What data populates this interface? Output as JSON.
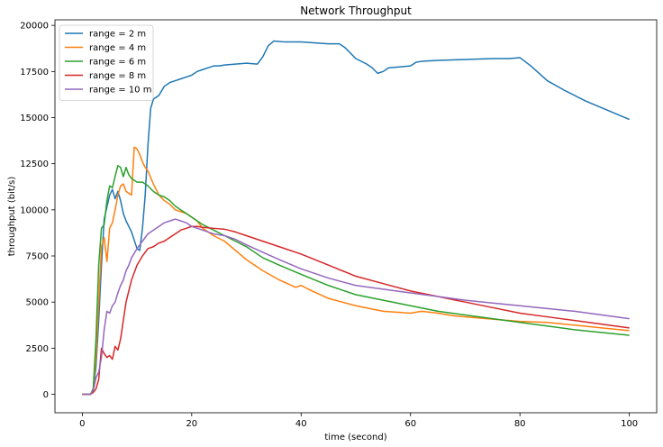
{
  "chart_data": {
    "type": "line",
    "title": "Network Throughput",
    "xlabel": "time (second)",
    "ylabel": "throughput (bit/s)",
    "xlim": [
      -5,
      105
    ],
    "ylim": [
      -1000,
      20300
    ],
    "xticks": [
      0,
      20,
      40,
      60,
      80,
      100
    ],
    "yticks": [
      0,
      2500,
      5000,
      7500,
      10000,
      12500,
      15000,
      17500,
      20000
    ],
    "grid": false,
    "legend_position": "top-left",
    "series": [
      {
        "name": "range = 2 m",
        "color": "#1f77b4",
        "x": [
          0,
          1.5,
          2,
          2.5,
          3,
          3.5,
          4,
          5,
          5.5,
          6,
          6.5,
          7,
          7.5,
          8,
          9,
          10,
          10.5,
          11,
          11.5,
          12,
          12.5,
          13,
          14,
          15,
          16,
          17,
          18,
          19,
          20,
          21,
          22,
          23,
          24,
          25,
          26,
          28,
          30,
          32,
          33,
          34,
          35,
          37,
          40,
          45,
          47,
          48,
          50,
          52,
          53,
          54,
          55,
          56,
          58,
          60,
          61,
          62,
          65,
          70,
          75,
          78,
          80,
          82,
          85,
          88,
          92,
          96,
          100
        ],
        "y": [
          0,
          0,
          200,
          1500,
          4000,
          7000,
          9500,
          10800,
          11100,
          10600,
          11000,
          10500,
          9800,
          9400,
          8800,
          7900,
          7800,
          9000,
          10800,
          13500,
          15500,
          16000,
          16200,
          16700,
          16900,
          17000,
          17100,
          17200,
          17300,
          17500,
          17600,
          17700,
          17800,
          17800,
          17850,
          17900,
          17950,
          17900,
          18300,
          18900,
          19150,
          19100,
          19100,
          19000,
          19000,
          18800,
          18200,
          17900,
          17700,
          17400,
          17500,
          17700,
          17750,
          17800,
          18000,
          18050,
          18100,
          18150,
          18200,
          18200,
          18250,
          17800,
          17000,
          16500,
          15900,
          15400,
          14900
        ]
      },
      {
        "name": "range = 4 m",
        "color": "#ff7f0e",
        "x": [
          0,
          1.5,
          2,
          2.5,
          3,
          3.5,
          4,
          4.5,
          5,
          5.5,
          6,
          6.5,
          7,
          7.5,
          8,
          9,
          9.5,
          10,
          10.5,
          11,
          11.5,
          12,
          13,
          14,
          15,
          16,
          17,
          18,
          19,
          20,
          21,
          22,
          24,
          26,
          28,
          30,
          33,
          36,
          39,
          40,
          42,
          45,
          50,
          55,
          60,
          62,
          65,
          68,
          72,
          76,
          80,
          85,
          90,
          95,
          100
        ],
        "y": [
          0,
          0,
          300,
          2000,
          5000,
          8000,
          8500,
          7200,
          9000,
          9300,
          10000,
          10800,
          11300,
          11400,
          11000,
          10800,
          13400,
          13300,
          13000,
          12600,
          12300,
          12100,
          11400,
          10800,
          10500,
          10300,
          10000,
          9900,
          9800,
          9600,
          9400,
          9000,
          8600,
          8300,
          7800,
          7300,
          6700,
          6200,
          5800,
          5900,
          5600,
          5200,
          4800,
          4500,
          4400,
          4500,
          4400,
          4250,
          4150,
          4050,
          3950,
          3900,
          3750,
          3600,
          3450
        ]
      },
      {
        "name": "range = 6 m",
        "color": "#2ca02c",
        "x": [
          0,
          1.5,
          2,
          2.5,
          3,
          3.5,
          4,
          4.5,
          5,
          5.5,
          6,
          6.5,
          7,
          7.5,
          8,
          8.5,
          9,
          10,
          11,
          12,
          13,
          14,
          15,
          16,
          17,
          18,
          19,
          20,
          22,
          24,
          26,
          28,
          30,
          33,
          36,
          40,
          45,
          50,
          55,
          60,
          65,
          70,
          75,
          80,
          85,
          90,
          95,
          100
        ],
        "y": [
          0,
          0,
          300,
          3000,
          7000,
          9000,
          9200,
          10500,
          11300,
          11200,
          11800,
          12400,
          12300,
          11800,
          12300,
          11900,
          11700,
          11500,
          11500,
          11300,
          11000,
          10800,
          10700,
          10500,
          10200,
          10000,
          9800,
          9600,
          9200,
          8900,
          8600,
          8300,
          8000,
          7400,
          7000,
          6500,
          5900,
          5400,
          5100,
          4800,
          4500,
          4300,
          4100,
          3900,
          3700,
          3500,
          3350,
          3200
        ]
      },
      {
        "name": "range = 8 m",
        "color": "#d62728",
        "x": [
          0,
          1.5,
          2,
          2.5,
          3,
          3.5,
          4,
          4.5,
          5,
          5.5,
          6,
          6.5,
          7,
          7.5,
          8,
          8.5,
          9,
          10,
          11,
          12,
          13,
          14,
          15,
          16,
          17,
          18,
          19,
          20,
          21,
          22,
          24,
          26,
          28,
          30,
          33,
          36,
          40,
          45,
          50,
          55,
          60,
          65,
          70,
          75,
          80,
          85,
          90,
          95,
          100
        ],
        "y": [
          0,
          0,
          100,
          300,
          800,
          2500,
          2200,
          2000,
          2100,
          1900,
          2600,
          2400,
          3000,
          4000,
          5000,
          5600,
          6200,
          7000,
          7500,
          7900,
          8000,
          8200,
          8300,
          8500,
          8700,
          8900,
          9000,
          9100,
          9100,
          9050,
          9000,
          8950,
          8800,
          8600,
          8300,
          8000,
          7600,
          7000,
          6400,
          6000,
          5600,
          5300,
          5000,
          4700,
          4400,
          4200,
          4000,
          3800,
          3600
        ]
      },
      {
        "name": "range = 10 m",
        "color": "#9467bd",
        "x": [
          0,
          1.5,
          2,
          2.5,
          3,
          3.5,
          4,
          4.5,
          5,
          5.5,
          6,
          6.5,
          7,
          7.5,
          8,
          8.5,
          9,
          10,
          11,
          12,
          13,
          14,
          15,
          16,
          17,
          18,
          19,
          20,
          21,
          22,
          23,
          24,
          26,
          28,
          30,
          33,
          36,
          40,
          45,
          50,
          55,
          60,
          65,
          70,
          75,
          80,
          85,
          90,
          95,
          100
        ],
        "y": [
          0,
          0,
          200,
          900,
          1200,
          2000,
          3500,
          4500,
          4400,
          4800,
          5000,
          5500,
          5900,
          6200,
          6700,
          7000,
          7400,
          7900,
          8300,
          8700,
          8900,
          9100,
          9300,
          9400,
          9500,
          9400,
          9300,
          9100,
          9000,
          8900,
          8800,
          8700,
          8600,
          8400,
          8100,
          7700,
          7300,
          6800,
          6300,
          5900,
          5700,
          5500,
          5300,
          5100,
          4950,
          4800,
          4650,
          4500,
          4300,
          4100
        ]
      }
    ]
  }
}
